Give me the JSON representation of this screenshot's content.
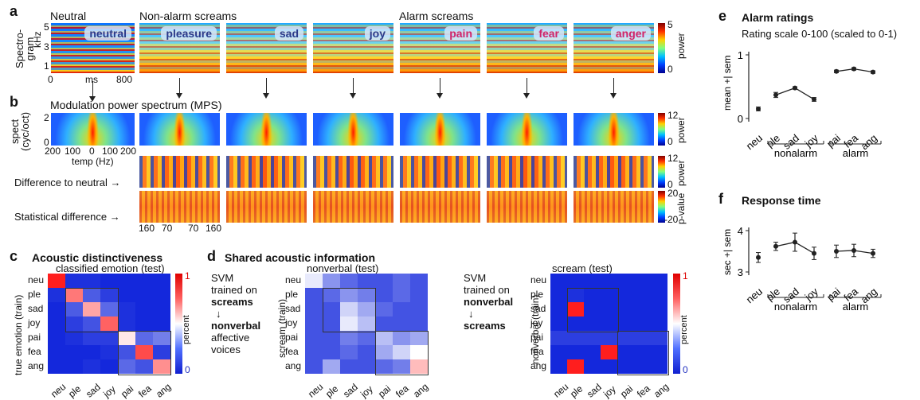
{
  "panel_a": {
    "letter": "a",
    "neutral_label": "Neutral",
    "nonalarm_label": "Non-alarm screams",
    "alarm_label": "Alarm screams",
    "y_label_1": "Spectro-",
    "y_label_2": "gram",
    "y_unit": "kHz",
    "y_ticks": [
      "5",
      "3",
      "1"
    ],
    "x_ticks": [
      "0",
      "ms",
      "800"
    ],
    "tiles": [
      "neutral",
      "pleasure",
      "sad",
      "joy",
      "pain",
      "fear",
      "anger"
    ],
    "cbar_ticks": [
      "5",
      "0"
    ],
    "cbar_label": "power"
  },
  "panel_b": {
    "letter": "b",
    "title": "Modulation power spectrum (MPS)",
    "y_label_1": "spect",
    "y_label_2": "(cyc/oct)",
    "y_ticks": [
      "2",
      "0"
    ],
    "x_ticks": [
      "200",
      "100",
      "0",
      "100",
      "200"
    ],
    "x_label": "temp (Hz)",
    "row2_label": "Difference to neutral →",
    "row3_label": "Statistical difference →",
    "bottom_ticks": [
      "160",
      "70",
      "70",
      "160"
    ],
    "cbar1": {
      "ticks": [
        "12",
        "0"
      ],
      "label": "power"
    },
    "cbar2": {
      "ticks": [
        "12",
        "0"
      ],
      "label": "power"
    },
    "cbar3": {
      "ticks": [
        "20",
        "-20"
      ],
      "label": "p-value"
    }
  },
  "panel_c": {
    "letter": "c",
    "title": "Acoustic distinctiveness",
    "subtitle": "classified emotion (test)",
    "y_label": "true emotion (train)",
    "categories": [
      "neu",
      "ple",
      "sad",
      "joy",
      "pai",
      "fea",
      "ang"
    ],
    "cbar_ticks": [
      "1",
      "0"
    ],
    "cbar_label": "percent"
  },
  "panel_d": {
    "letter": "d",
    "title": "Shared acoustic information",
    "left_text": [
      "SVM",
      "trained on",
      "screams",
      "↓",
      "nonverbal",
      "affective",
      "voices"
    ],
    "left_matrix_title": "nonverbal (test)",
    "left_y_label": "scream (train)",
    "right_text": [
      "SVM",
      "trained on",
      "nonverbal",
      "↓",
      "screams"
    ],
    "right_matrix_title": "scream (test)",
    "right_y_label": "nonverbal (train)",
    "categories": [
      "neu",
      "ple",
      "sad",
      "joy",
      "pai",
      "fea",
      "ang"
    ],
    "cbar_ticks": [
      "1",
      "0"
    ],
    "cbar_label": "percent"
  },
  "panel_e": {
    "letter": "e",
    "title": "Alarm ratings",
    "subtitle": "Rating scale 0-100 (scaled to 0-1)",
    "y_label": "mean +| sem",
    "group_nonalarm": "nonalarm",
    "group_alarm": "alarm"
  },
  "panel_f": {
    "letter": "f",
    "title": "Response time",
    "y_label": "sec +| sem",
    "group_nonalarm": "nonalarm",
    "group_alarm": "alarm"
  },
  "chart_data": [
    {
      "type": "heatmap",
      "id": "acoustic-distinctiveness",
      "title": "Acoustic distinctiveness",
      "xlabel": "classified emotion (test)",
      "ylabel": "true emotion (train)",
      "x": [
        "neu",
        "ple",
        "sad",
        "joy",
        "pai",
        "fea",
        "ang"
      ],
      "y": [
        "neu",
        "ple",
        "sad",
        "joy",
        "pai",
        "fea",
        "ang"
      ],
      "range": [
        0,
        1
      ],
      "values": [
        [
          1.0,
          0.02,
          0.02,
          0.0,
          0.0,
          0.0,
          0.0
        ],
        [
          0.02,
          0.8,
          0.12,
          0.05,
          0.0,
          0.0,
          0.0
        ],
        [
          0.0,
          0.12,
          0.7,
          0.15,
          0.02,
          0.0,
          0.0
        ],
        [
          0.0,
          0.05,
          0.1,
          0.85,
          0.02,
          0.0,
          0.0
        ],
        [
          0.0,
          0.02,
          0.05,
          0.05,
          0.55,
          0.15,
          0.2
        ],
        [
          0.0,
          0.0,
          0.0,
          0.02,
          0.1,
          0.9,
          0.05
        ],
        [
          0.0,
          0.0,
          0.02,
          0.0,
          0.15,
          0.1,
          0.75
        ]
      ]
    },
    {
      "type": "heatmap",
      "id": "screams-to-nonverbal",
      "xlabel": "nonverbal (test)",
      "ylabel": "scream (train)",
      "x": [
        "neu",
        "ple",
        "sad",
        "joy",
        "pai",
        "fea",
        "ang"
      ],
      "y": [
        "neu",
        "ple",
        "sad",
        "joy",
        "pai",
        "fea",
        "ang"
      ],
      "range": [
        0,
        1
      ],
      "values": [
        [
          0.45,
          0.25,
          0.15,
          0.1,
          0.1,
          0.15,
          0.1
        ],
        [
          0.1,
          0.15,
          0.25,
          0.2,
          0.1,
          0.15,
          0.1
        ],
        [
          0.1,
          0.1,
          0.4,
          0.3,
          0.15,
          0.1,
          0.1
        ],
        [
          0.1,
          0.1,
          0.45,
          0.35,
          0.1,
          0.1,
          0.1
        ],
        [
          0.1,
          0.1,
          0.2,
          0.15,
          0.35,
          0.25,
          0.3
        ],
        [
          0.1,
          0.1,
          0.15,
          0.1,
          0.3,
          0.4,
          0.5
        ],
        [
          0.1,
          0.3,
          0.1,
          0.1,
          0.15,
          0.2,
          0.65
        ]
      ]
    },
    {
      "type": "heatmap",
      "id": "nonverbal-to-screams",
      "xlabel": "scream (test)",
      "ylabel": "nonverbal (train)",
      "x": [
        "neu",
        "ple",
        "sad",
        "joy",
        "pai",
        "fea",
        "ang"
      ],
      "y": [
        "neu",
        "ple",
        "sad",
        "joy",
        "pai",
        "fea",
        "ang"
      ],
      "range": [
        0,
        1
      ],
      "values": [
        [
          0.0,
          0.0,
          0.0,
          0.0,
          0.0,
          0.0,
          0.0
        ],
        [
          0.0,
          0.02,
          0.0,
          0.0,
          0.0,
          0.0,
          0.0
        ],
        [
          0.0,
          1.0,
          0.0,
          0.0,
          0.0,
          0.0,
          0.0
        ],
        [
          0.0,
          0.0,
          0.0,
          0.0,
          0.0,
          0.0,
          0.0
        ],
        [
          0.05,
          0.05,
          0.05,
          0.05,
          0.05,
          0.05,
          0.05
        ],
        [
          0.0,
          0.0,
          0.0,
          1.0,
          0.0,
          0.0,
          0.0
        ],
        [
          0.0,
          1.0,
          0.0,
          0.0,
          0.0,
          0.0,
          0.0
        ]
      ]
    },
    {
      "type": "line",
      "id": "alarm-ratings",
      "title": "Alarm ratings",
      "ylabel": "mean +| sem",
      "categories": [
        "neu",
        "ple",
        "sad",
        "joy",
        "pai",
        "fea",
        "ang"
      ],
      "ylim": [
        0,
        1
      ],
      "yticks": [
        "0",
        "1"
      ],
      "groups": [
        [
          "neu"
        ],
        [
          "ple",
          "sad",
          "joy"
        ],
        [
          "pai",
          "fea",
          "ang"
        ]
      ],
      "values": [
        0.15,
        0.37,
        0.48,
        0.3,
        0.74,
        0.78,
        0.73
      ],
      "sem": [
        0.03,
        0.04,
        0.02,
        0.03,
        0.02,
        0.02,
        0.02
      ]
    },
    {
      "type": "line",
      "id": "response-time",
      "title": "Response time",
      "ylabel": "sec +| sem",
      "categories": [
        "neu",
        "ple",
        "sad",
        "joy",
        "pai",
        "fea",
        "ang"
      ],
      "ylim": [
        3,
        4
      ],
      "yticks": [
        "3",
        "4"
      ],
      "groups": [
        [
          "neu"
        ],
        [
          "ple",
          "sad",
          "joy"
        ],
        [
          "pai",
          "fea",
          "ang"
        ]
      ],
      "values": [
        3.35,
        3.62,
        3.72,
        3.45,
        3.5,
        3.52,
        3.45
      ],
      "sem": [
        0.12,
        0.1,
        0.22,
        0.15,
        0.15,
        0.15,
        0.1
      ]
    }
  ]
}
